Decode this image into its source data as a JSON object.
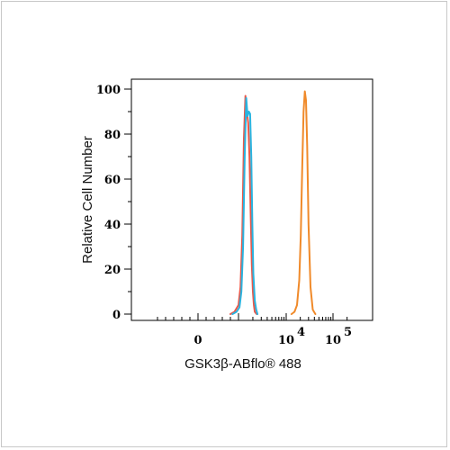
{
  "chart_data": {
    "type": "line",
    "title": "",
    "xlabel": "GSK3β-ABflo® 488",
    "ylabel": "Relative Cell Number",
    "x_scale": "biexponential (log above 10^3)",
    "xlim": [
      -1000,
      250000
    ],
    "ylim": [
      0,
      100
    ],
    "grid": false,
    "legend": "none",
    "y_ticks": [
      "0",
      "20",
      "40",
      "60",
      "80",
      "100"
    ],
    "y_tick_values": [
      0,
      20,
      40,
      60,
      80,
      100
    ],
    "x_tick_labels": [
      {
        "value": 0,
        "base": "0",
        "exp": ""
      },
      {
        "value": 10000,
        "base": "10",
        "exp": "4"
      },
      {
        "value": 100000,
        "base": "10",
        "exp": "5"
      }
    ],
    "series": [
      {
        "color": "#e8584a",
        "x": [
          800,
          900,
          1000,
          1100,
          1200,
          1300,
          1400,
          1500,
          1600,
          1700,
          1800,
          1900,
          2000,
          2100,
          2200,
          2400
        ],
        "y": [
          0,
          1,
          4,
          12,
          35,
          78,
          97,
          90,
          85,
          70,
          45,
          22,
          10,
          4,
          1,
          0
        ]
      },
      {
        "color": "#2ab4e0",
        "x": [
          850,
          950,
          1050,
          1150,
          1250,
          1350,
          1450,
          1550,
          1650,
          1750,
          1850,
          1950,
          2050,
          2200,
          2350,
          2500
        ],
        "y": [
          0,
          1,
          3,
          10,
          30,
          70,
          96,
          88,
          90,
          89,
          70,
          40,
          18,
          6,
          2,
          0
        ]
      },
      {
        "color": "#f08a2a",
        "x": [
          13000,
          15000,
          17000,
          19000,
          20500,
          22000,
          23500,
          25000,
          26500,
          28000,
          30000,
          33000,
          37000,
          42000
        ],
        "y": [
          0,
          1,
          4,
          15,
          35,
          65,
          90,
          99,
          95,
          75,
          40,
          12,
          2,
          0
        ]
      }
    ]
  }
}
